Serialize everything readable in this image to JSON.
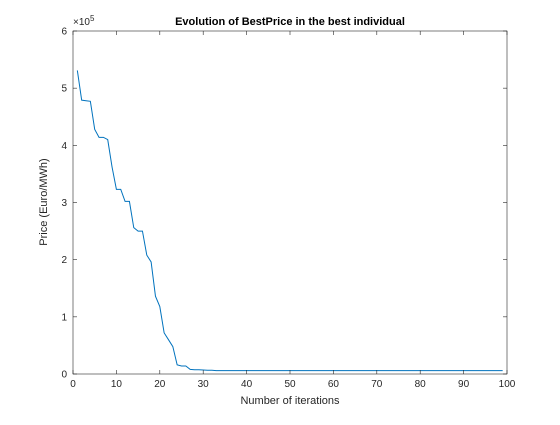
{
  "chart_data": {
    "type": "line",
    "title": "Evolution of BestPrice in the best individual",
    "xlabel": "Number of iterations",
    "ylabel": "Price (Euro/MWh)",
    "y_exponent_label": "×10^5",
    "xlim": [
      0,
      100
    ],
    "ylim": [
      0,
      600000
    ],
    "xticks": [
      0,
      10,
      20,
      30,
      40,
      50,
      60,
      70,
      80,
      90,
      100
    ],
    "yticks": [
      0,
      100000,
      200000,
      300000,
      400000,
      500000,
      600000
    ],
    "xtick_labels": [
      "0",
      "10",
      "20",
      "30",
      "40",
      "50",
      "60",
      "70",
      "80",
      "90",
      "100"
    ],
    "ytick_labels": [
      "0",
      "1",
      "2",
      "3",
      "4",
      "5",
      "6"
    ],
    "grid": false,
    "line_color": "#0072BD",
    "series": [
      {
        "x": [
          1,
          2,
          3,
          4,
          5,
          6,
          7,
          8,
          9,
          10,
          11,
          12,
          13,
          14,
          15,
          16,
          17,
          18,
          19,
          20,
          21,
          22,
          23,
          24,
          25,
          26,
          27,
          28,
          29,
          30,
          31,
          32,
          33,
          34,
          35,
          36,
          37,
          38,
          39,
          40,
          41,
          42,
          43,
          44,
          45,
          46,
          47,
          48,
          49,
          50,
          51,
          52,
          53,
          54,
          55,
          56,
          57,
          58,
          59,
          60,
          61,
          62,
          63,
          64,
          65,
          66,
          67,
          68,
          69,
          70,
          71,
          72,
          73,
          74,
          75,
          76,
          77,
          78,
          79,
          80,
          81,
          82,
          83,
          84,
          85,
          86,
          87,
          88,
          89,
          90,
          91,
          92,
          93,
          94,
          95,
          96,
          97,
          98,
          99
        ],
        "values": [
          531000,
          479000,
          478000,
          477000,
          428000,
          414000,
          414000,
          410000,
          362000,
          323000,
          323000,
          302000,
          302000,
          256000,
          250000,
          250000,
          208000,
          196000,
          136000,
          118000,
          72000,
          60000,
          48000,
          16000,
          14000,
          14000,
          8000,
          7500,
          7500,
          7000,
          6500,
          6500,
          6000,
          6000,
          6000,
          6000,
          6000,
          6000,
          6000,
          6000,
          6000,
          6000,
          6000,
          6000,
          6000,
          6000,
          6000,
          6000,
          6000,
          6000,
          6000,
          6000,
          6000,
          6000,
          6000,
          6000,
          6000,
          6000,
          6000,
          6000,
          6000,
          6000,
          6000,
          6000,
          6000,
          6000,
          6000,
          6000,
          6000,
          6000,
          6000,
          6000,
          6000,
          6000,
          6000,
          6000,
          6000,
          6000,
          6000,
          6000,
          6000,
          6000,
          6000,
          6000,
          6000,
          6000,
          6000,
          6000,
          6000,
          6000,
          6000,
          6000,
          6000,
          6000,
          6000,
          6000,
          6000,
          6000,
          6000
        ]
      }
    ]
  }
}
